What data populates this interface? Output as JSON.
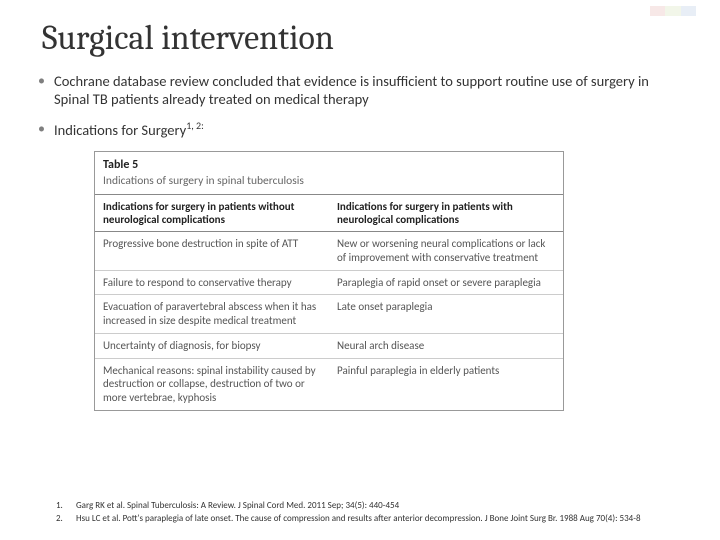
{
  "title": "Surgical intervention",
  "bullets": {
    "b1": "Cochrane database review concluded that  evidence is insufficient to support routine use of surgery in Spinal TB patients already treated on medical therapy",
    "b2_prefix": "Indications for Surgery",
    "b2_sup": "1, 2:"
  },
  "table": {
    "caption": "Table 5",
    "subcaption": "Indications of surgery in spinal tuberculosis",
    "headers": {
      "left": "Indications for surgery in patients without neurological complications",
      "right": "Indications for surgery in patients with neurological complications"
    },
    "rows": [
      {
        "left": "Progressive bone destruction in spite of ATT",
        "right": "New or worsening neural complications or lack of improvement with conservative treatment"
      },
      {
        "left": "Failure to respond to conservative therapy",
        "right": "Paraplegia of rapid onset or severe paraplegia"
      },
      {
        "left": "Evacuation of paravertebral abscess when it has increased in size despite medical treatment",
        "right": "Late onset paraplegia"
      },
      {
        "left": "Uncertainty of diagnosis, for biopsy",
        "right": "Neural arch disease"
      },
      {
        "left": "Mechanical reasons: spinal instability caused by destruction or collapse, destruction of two or more vertebrae, kyphosis",
        "right": "Painful paraplegia in elderly patients"
      }
    ]
  },
  "refs": {
    "r1_num": "1.",
    "r1_text": "Garg RK et al. Spinal Tuberculosis: A Review.  J Spinal Cord Med. 2011 Sep; 34(5): 440-454",
    "r2_num": "2.",
    "r2_text": "Hsu LC et al. Pott's paraplegia of late onset.  The cause of compression and results after anterior decompression. J Bone Joint Surg Br. 1988 Aug 70(4): 534-8"
  }
}
